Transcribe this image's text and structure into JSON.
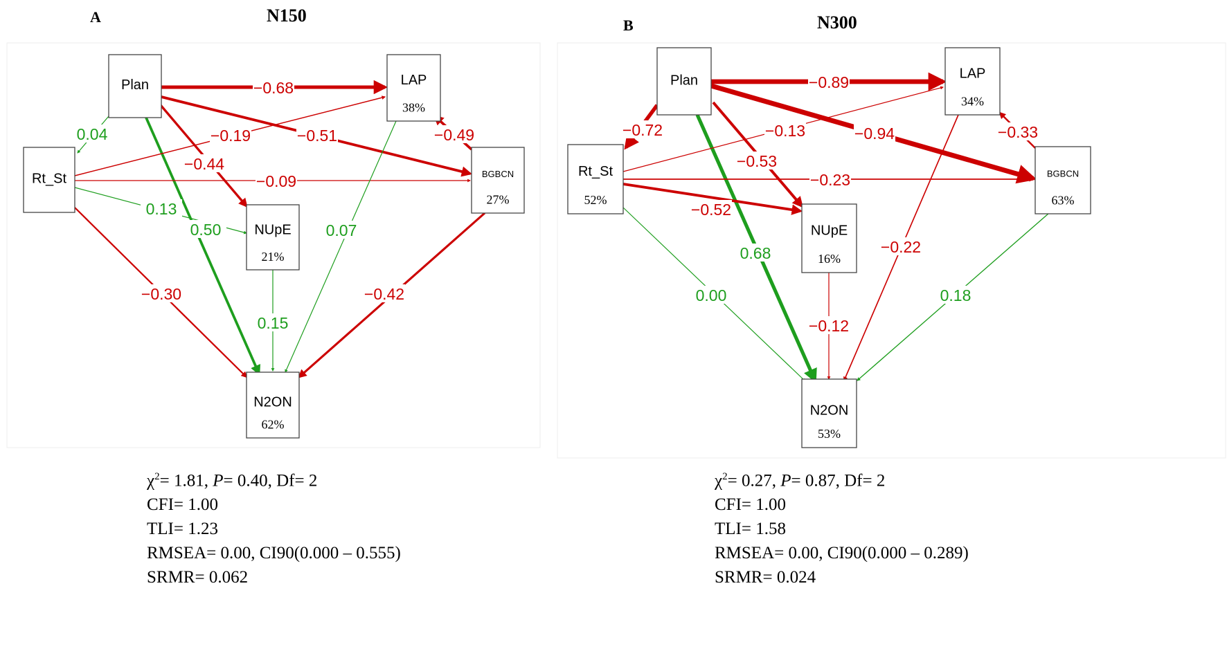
{
  "colors": {
    "negative": "#cc0000",
    "positive": "#1e9e1e",
    "node_border": "#444444"
  },
  "panels": [
    {
      "letter": "A",
      "title": "N150",
      "nodes": {
        "Plan": {
          "label": "Plan",
          "pct": ""
        },
        "LAP": {
          "label": "LAP",
          "pct": "38%"
        },
        "Rt_St": {
          "label": "Rt_St",
          "pct": ""
        },
        "BGBCN": {
          "label": "BGBCN",
          "pct": "27%"
        },
        "NUpE": {
          "label": "NUpE",
          "pct": "21%"
        },
        "N2ON": {
          "label": "N2ON",
          "pct": "62%"
        }
      },
      "edges": [
        {
          "from": "Plan",
          "to": "LAP",
          "label": "−0.68",
          "value": -0.68
        },
        {
          "from": "Plan",
          "to": "BGBCN",
          "label": "−0.51",
          "value": -0.51
        },
        {
          "from": "Plan",
          "to": "NUpE",
          "label": "−0.44",
          "value": -0.44
        },
        {
          "from": "Plan",
          "to": "N2ON",
          "label": "0.50",
          "value": 0.5
        },
        {
          "from": "Plan",
          "to": "Rt_St",
          "label": "0.04",
          "value": 0.04
        },
        {
          "from": "Rt_St",
          "to": "LAP",
          "label": "−0.19",
          "value": -0.19
        },
        {
          "from": "Rt_St",
          "to": "BGBCN",
          "label": "−0.09",
          "value": -0.09
        },
        {
          "from": "Rt_St",
          "to": "NUpE",
          "label": "0.13",
          "value": 0.13
        },
        {
          "from": "Rt_St",
          "to": "N2ON",
          "label": "−0.30",
          "value": -0.3
        },
        {
          "from": "LAP",
          "to": "N2ON",
          "label": "0.07",
          "value": 0.07
        },
        {
          "from": "BGBCN",
          "to": "LAP",
          "label": "−0.49",
          "value": -0.49
        },
        {
          "from": "NUpE",
          "to": "N2ON",
          "label": "0.15",
          "value": 0.15
        },
        {
          "from": "BGBCN",
          "to": "N2ON",
          "label": "−0.42",
          "value": -0.42
        }
      ],
      "stats": {
        "chi_sym": "χ",
        "chi_sup": "2",
        "chi_rest": "= 1.81, ",
        "p_sym": "P",
        "p_rest": "= 0.40, Df= 2",
        "cfi": "CFI= 1.00",
        "tli": "TLI= 1.23",
        "rmsea": "RMSEA= 0.00, CI90(0.000 – 0.555)",
        "srmr": "SRMR= 0.062"
      }
    },
    {
      "letter": "B",
      "title": "N300",
      "nodes": {
        "Plan": {
          "label": "Plan",
          "pct": ""
        },
        "LAP": {
          "label": "LAP",
          "pct": "34%"
        },
        "Rt_St": {
          "label": "Rt_St",
          "pct": "52%"
        },
        "BGBCN": {
          "label": "BGBCN",
          "pct": "63%"
        },
        "NUpE": {
          "label": "NUpE",
          "pct": "16%"
        },
        "N2ON": {
          "label": "N2ON",
          "pct": "53%"
        }
      },
      "edges": [
        {
          "from": "Plan",
          "to": "LAP",
          "label": "−0.89",
          "value": -0.89
        },
        {
          "from": "Plan",
          "to": "BGBCN",
          "label": "−0.94",
          "value": -0.94
        },
        {
          "from": "Plan",
          "to": "NUpE",
          "label": "−0.53",
          "value": -0.53
        },
        {
          "from": "Plan",
          "to": "N2ON",
          "label": "0.68",
          "value": 0.68
        },
        {
          "from": "Plan",
          "to": "Rt_St",
          "label": "−0.72",
          "value": -0.72
        },
        {
          "from": "Rt_St",
          "to": "LAP",
          "label": "−0.13",
          "value": -0.13
        },
        {
          "from": "Rt_St",
          "to": "BGBCN",
          "label": "−0.23",
          "value": -0.23
        },
        {
          "from": "Rt_St",
          "to": "NUpE",
          "label": "−0.52",
          "value": -0.52
        },
        {
          "from": "Rt_St",
          "to": "N2ON",
          "label": "0.00",
          "value": 0.0
        },
        {
          "from": "LAP",
          "to": "N2ON",
          "label": "−0.22",
          "value": -0.22
        },
        {
          "from": "BGBCN",
          "to": "LAP",
          "label": "−0.33",
          "value": -0.33
        },
        {
          "from": "NUpE",
          "to": "N2ON",
          "label": "−0.12",
          "value": -0.12
        },
        {
          "from": "BGBCN",
          "to": "N2ON",
          "label": "0.18",
          "value": 0.18
        }
      ],
      "stats": {
        "chi_sym": "χ",
        "chi_sup": "2",
        "chi_rest": "= 0.27, ",
        "p_sym": "P",
        "p_rest": "= 0.87, Df= 2",
        "cfi": "CFI= 1.00",
        "tli": "TLI= 1.58",
        "rmsea": "RMSEA= 0.00, CI90(0.000 – 0.289)",
        "srmr": "SRMR= 0.024"
      }
    }
  ]
}
